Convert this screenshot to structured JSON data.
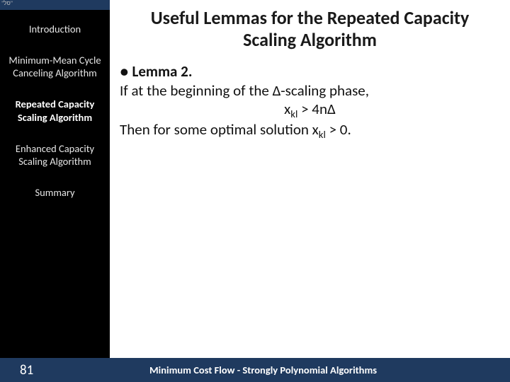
{
  "colors": {
    "sidebar_bg": "#000000",
    "footer_bg": "#1f3a5f",
    "main_bg": "#ffffff",
    "sidebar_text": "#e6e6e6",
    "footer_text": "#ffffff",
    "body_text": "#111111"
  },
  "typography": {
    "title_fontsize": 26,
    "body_fontsize": 21,
    "sidebar_fontsize": 14.5,
    "footer_fontsize": 14.5
  },
  "sidebar": {
    "topmark": "\"סל\"",
    "items": [
      {
        "label": "Introduction",
        "active": false
      },
      {
        "label": "Minimum-Mean Cycle Canceling Algorithm",
        "active": false
      },
      {
        "label": "Repeated Capacity Scaling Algorithm",
        "active": true
      },
      {
        "label": "Enhanced Capacity Scaling Algorithm",
        "active": false
      },
      {
        "label": "Summary",
        "active": false
      }
    ],
    "page_number": "81"
  },
  "main": {
    "title": "Useful Lemmas for the Repeated Capacity Scaling Algorithm",
    "bullet": "●",
    "lemma_label": "Lemma 2.",
    "line1": "If at the beginning of the Δ-scaling phase,",
    "line2_prefix": "x",
    "line2_sub": "kl",
    "line2_rest": " > 4nΔ",
    "line3_a": "Then for some optimal solution x",
    "line3_sub": "kl",
    "line3_b": " > 0."
  },
  "footer": {
    "text": "Minimum Cost Flow - Strongly Polynomial Algorithms"
  }
}
